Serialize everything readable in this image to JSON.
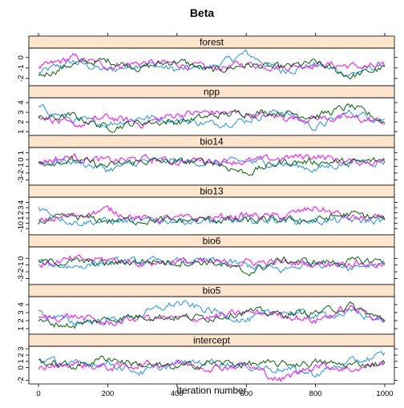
{
  "chart_data": {
    "type": "line",
    "title": "Beta",
    "xlabel": "Iteration number",
    "x_range": [
      0,
      1000
    ],
    "x_ticks": [
      0,
      200,
      400,
      600,
      800,
      1000
    ],
    "colors": {
      "chain1": "#1E90FF",
      "chain2": "#FF00FF",
      "chain3": "#006400",
      "strip": "#FFE5CC",
      "border": "#000000"
    },
    "panels": [
      {
        "name": "forest",
        "ylim": [
          -2.7,
          0.9
        ],
        "y_ticks": [
          -2,
          -1,
          0
        ],
        "y_tick_labels": [
          "-2",
          "-1",
          "0"
        ],
        "series": [
          {
            "x": [
              0,
              100,
              200,
              300,
              400,
              500,
              600,
              700,
              800,
              900,
              1000
            ],
            "values": [
              -1.5,
              -0.4,
              -1.3,
              -0.5,
              -1.2,
              -0.9,
              0.4,
              -1.3,
              -0.7,
              -1.6,
              -0.6
            ]
          },
          {
            "x": [
              0,
              100,
              200,
              300,
              400,
              500,
              600,
              700,
              800,
              900,
              1000
            ],
            "values": [
              -1.1,
              0.0,
              -0.8,
              -0.5,
              -0.6,
              -1.1,
              -0.6,
              -0.9,
              -0.6,
              -0.8,
              -1.0
            ]
          },
          {
            "x": [
              0,
              100,
              200,
              300,
              400,
              500,
              600,
              700,
              800,
              900,
              1000
            ],
            "values": [
              -1.8,
              -0.6,
              -0.3,
              -1.0,
              -0.3,
              -1.3,
              -0.7,
              -1.0,
              -0.5,
              -1.8,
              -1.0
            ]
          }
        ]
      },
      {
        "name": "npp",
        "ylim": [
          0.6,
          4.5
        ],
        "y_ticks": [
          1,
          2,
          3,
          4
        ],
        "y_tick_labels": [
          "1",
          "2",
          "3",
          "4"
        ],
        "series": [
          {
            "x": [
              0,
              100,
              200,
              300,
              400,
              500,
              600,
              700,
              800,
              900,
              1000
            ],
            "values": [
              3.5,
              2.2,
              1.8,
              2.5,
              2.2,
              1.8,
              2.2,
              3.2,
              1.4,
              3.0,
              2.2
            ]
          },
          {
            "x": [
              0,
              100,
              200,
              300,
              400,
              500,
              600,
              700,
              800,
              900,
              1000
            ],
            "values": [
              2.8,
              1.5,
              2.5,
              1.8,
              2.8,
              3.0,
              2.8,
              2.5,
              2.4,
              2.4,
              2.0
            ]
          },
          {
            "x": [
              0,
              100,
              200,
              300,
              400,
              500,
              600,
              700,
              800,
              900,
              1000
            ],
            "values": [
              2.3,
              2.6,
              1.4,
              2.0,
              2.0,
              2.6,
              3.0,
              3.0,
              2.6,
              3.6,
              2.0
            ]
          }
        ]
      },
      {
        "name": "bio14",
        "ylim": [
          -3.8,
          1.8
        ],
        "y_ticks": [
          -3,
          -2,
          -1,
          0,
          1
        ],
        "y_tick_labels": [
          "-3",
          "-2",
          "-1",
          "0",
          "1"
        ],
        "series": [
          {
            "x": [
              0,
              100,
              200,
              300,
              400,
              500,
              600,
              700,
              800,
              900,
              1000
            ],
            "values": [
              -0.4,
              -0.2,
              -1.5,
              -0.3,
              -0.2,
              -0.5,
              -0.3,
              -0.6,
              -1.4,
              -0.4,
              -0.3
            ]
          },
          {
            "x": [
              0,
              100,
              200,
              300,
              400,
              500,
              600,
              700,
              800,
              900,
              1000
            ],
            "values": [
              -0.3,
              0.4,
              -0.2,
              0.1,
              -0.3,
              -0.1,
              -0.3,
              0.2,
              0.6,
              -0.4,
              -0.2
            ]
          },
          {
            "x": [
              0,
              100,
              200,
              300,
              400,
              500,
              600,
              700,
              800,
              900,
              1000
            ],
            "values": [
              -0.4,
              -0.1,
              -1.0,
              -0.2,
              -0.4,
              -0.3,
              -2.0,
              -0.4,
              -0.3,
              -0.5,
              -0.1
            ]
          }
        ]
      },
      {
        "name": "bio13",
        "ylim": [
          -2.2,
          5.0
        ],
        "y_ticks": [
          -1,
          0,
          1,
          2,
          3,
          4
        ],
        "y_tick_labels": [
          "-1",
          "0",
          "1",
          "2",
          "3",
          "4"
        ],
        "series": [
          {
            "x": [
              0,
              100,
              200,
              300,
              400,
              500,
              600,
              700,
              800,
              900,
              1000
            ],
            "values": [
              3.0,
              0.2,
              0.4,
              0.4,
              0.6,
              0.3,
              0.5,
              0.8,
              0.4,
              0.6,
              0.4
            ]
          },
          {
            "x": [
              0,
              100,
              200,
              300,
              400,
              500,
              600,
              700,
              800,
              900,
              1000
            ],
            "values": [
              0.3,
              1.5,
              2.6,
              0.8,
              0.9,
              1.0,
              1.5,
              1.2,
              3.0,
              1.0,
              0.8
            ]
          },
          {
            "x": [
              0,
              100,
              200,
              300,
              400,
              500,
              600,
              700,
              800,
              900,
              1000
            ],
            "values": [
              0.4,
              1.2,
              0.5,
              0.6,
              0.5,
              0.7,
              0.4,
              0.6,
              0.6,
              1.8,
              0.8
            ]
          }
        ]
      },
      {
        "name": "bio6",
        "ylim": [
          -3.9,
          1.7
        ],
        "y_ticks": [
          -3,
          -2,
          -1,
          0
        ],
        "y_tick_labels": [
          "-3",
          "-2",
          "-1",
          "0"
        ],
        "series": [
          {
            "x": [
              0,
              100,
              200,
              300,
              400,
              500,
              600,
              700,
              800,
              900,
              1000
            ],
            "values": [
              -0.8,
              -1.2,
              -0.6,
              -0.5,
              -0.5,
              -0.4,
              -1.0,
              -1.8,
              -0.6,
              -1.2,
              -0.6
            ]
          },
          {
            "x": [
              0,
              100,
              200,
              300,
              400,
              500,
              600,
              700,
              800,
              900,
              1000
            ],
            "values": [
              -1.0,
              -0.2,
              -0.2,
              -0.7,
              -0.4,
              -0.8,
              -0.6,
              -0.6,
              -0.8,
              -0.6,
              -1.0
            ]
          },
          {
            "x": [
              0,
              100,
              200,
              300,
              400,
              500,
              600,
              700,
              800,
              900,
              1000
            ],
            "values": [
              -0.6,
              -0.5,
              -0.8,
              -0.4,
              -0.6,
              -0.5,
              -2.2,
              -0.3,
              -0.6,
              -0.5,
              -0.3
            ]
          }
        ]
      },
      {
        "name": "bio5",
        "ylim": [
          0.3,
          5.0
        ],
        "y_ticks": [
          1,
          2,
          3,
          4
        ],
        "y_tick_labels": [
          "1",
          "2",
          "3",
          "4"
        ],
        "series": [
          {
            "x": [
              0,
              100,
              200,
              300,
              400,
              500,
              600,
              700,
              800,
              900,
              1000
            ],
            "values": [
              3.0,
              1.8,
              2.0,
              2.8,
              4.2,
              3.2,
              2.0,
              3.2,
              2.6,
              3.0,
              2.0
            ]
          },
          {
            "x": [
              0,
              100,
              200,
              300,
              400,
              500,
              600,
              700,
              800,
              900,
              1000
            ],
            "values": [
              2.2,
              2.6,
              1.6,
              2.4,
              2.2,
              2.4,
              3.0,
              2.8,
              2.0,
              3.6,
              2.2
            ]
          },
          {
            "x": [
              0,
              100,
              200,
              300,
              400,
              500,
              600,
              700,
              800,
              900,
              1000
            ],
            "values": [
              1.8,
              1.4,
              2.2,
              2.6,
              2.4,
              2.4,
              3.2,
              2.8,
              3.0,
              3.8,
              2.0
            ]
          }
        ]
      },
      {
        "name": "intercept",
        "ylim": [
          -2.6,
          3.4
        ],
        "y_ticks": [
          -2,
          0,
          1,
          2,
          3
        ],
        "y_tick_labels": [
          "-2",
          "0",
          "1",
          "2",
          "3"
        ],
        "series": [
          {
            "x": [
              0,
              100,
              200,
              300,
              400,
              500,
              600,
              700,
              800,
              900,
              1000
            ],
            "values": [
              1.4,
              0.4,
              0.8,
              -0.8,
              0.6,
              1.0,
              0.2,
              -0.2,
              -1.0,
              0.8,
              2.0
            ]
          },
          {
            "x": [
              0,
              100,
              200,
              300,
              400,
              500,
              600,
              700,
              800,
              900,
              1000
            ],
            "values": [
              0.0,
              0.6,
              0.0,
              0.5,
              0.8,
              0.0,
              0.4,
              -2.0,
              0.5,
              -0.3,
              0.8
            ]
          },
          {
            "x": [
              0,
              100,
              200,
              300,
              400,
              500,
              600,
              700,
              800,
              900,
              1000
            ],
            "values": [
              1.0,
              0.2,
              1.6,
              0.4,
              0.0,
              0.8,
              0.6,
              0.5,
              0.8,
              0.4,
              0.8
            ]
          }
        ]
      }
    ]
  }
}
